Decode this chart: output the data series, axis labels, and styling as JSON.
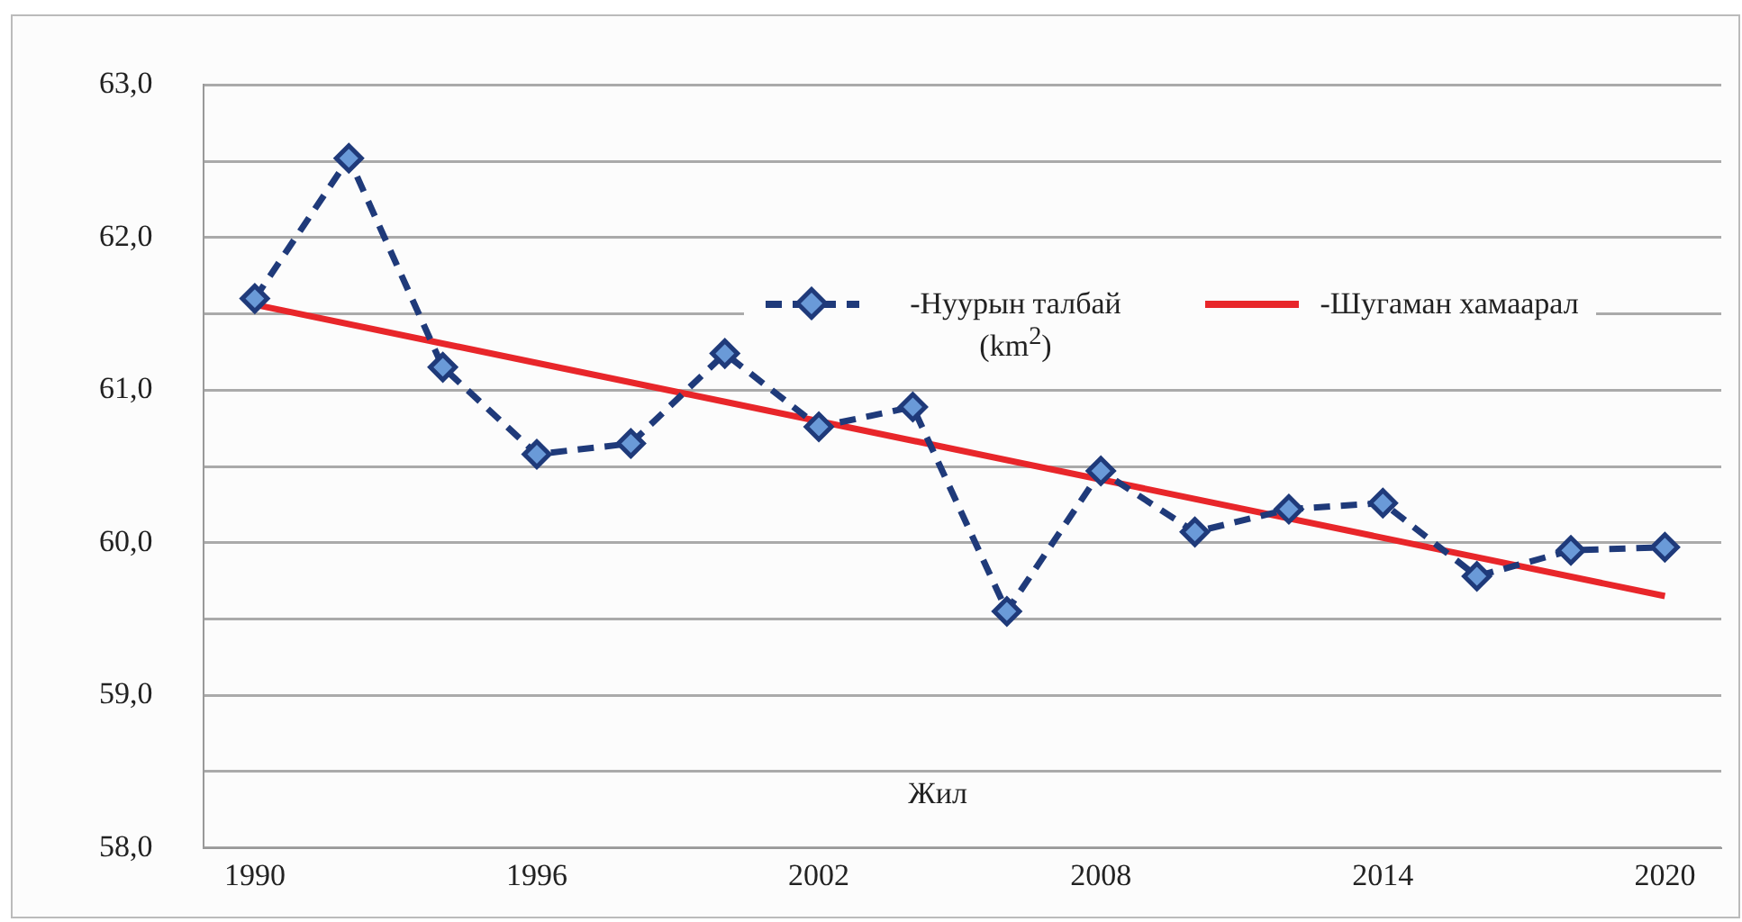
{
  "chart_data": {
    "type": "line",
    "xlabel": "Жил",
    "x": [
      1990,
      1992,
      1994,
      1996,
      1998,
      2000,
      2002,
      2004,
      2006,
      2008,
      2010,
      2012,
      2014,
      2016,
      2018,
      2020
    ],
    "series": [
      {
        "name": "-Нуурын талбай (km$^{2}$)",
        "color": "#1f3a7a",
        "marker": "diamond",
        "line_style": "dashed",
        "values": [
          61.6,
          62.52,
          61.15,
          60.58,
          60.65,
          61.24,
          60.76,
          60.89,
          59.55,
          60.47,
          60.07,
          60.22,
          60.26,
          59.78,
          59.95,
          59.97
        ]
      },
      {
        "name": "-Шугаман хамаарал",
        "type": "line",
        "color": "#e8262a",
        "marker": "none",
        "line_style": "solid",
        "x": [
          1990,
          2020
        ],
        "values": [
          61.56,
          59.65
        ]
      }
    ],
    "xlim": [
      1988.9,
      2021.2
    ],
    "xticks": [
      1990,
      1996,
      2002,
      2008,
      2014,
      2020
    ],
    "ylim": [
      58,
      63
    ],
    "yticks": [
      {
        "value": 58,
        "label": "58,0"
      },
      {
        "value": 58.5,
        "label": null
      },
      {
        "value": 59,
        "label": "59,0"
      },
      {
        "value": 59.5,
        "label": null
      },
      {
        "value": 60,
        "label": "60,0"
      },
      {
        "value": 60.5,
        "label": null
      },
      {
        "value": 61,
        "label": "61,0"
      },
      {
        "value": 61.5,
        "label": null
      },
      {
        "value": 62,
        "label": "62,0"
      },
      {
        "value": 62.5,
        "label": null
      },
      {
        "value": 63,
        "label": "63,0"
      }
    ],
    "grid": "y",
    "legend": "top right"
  }
}
